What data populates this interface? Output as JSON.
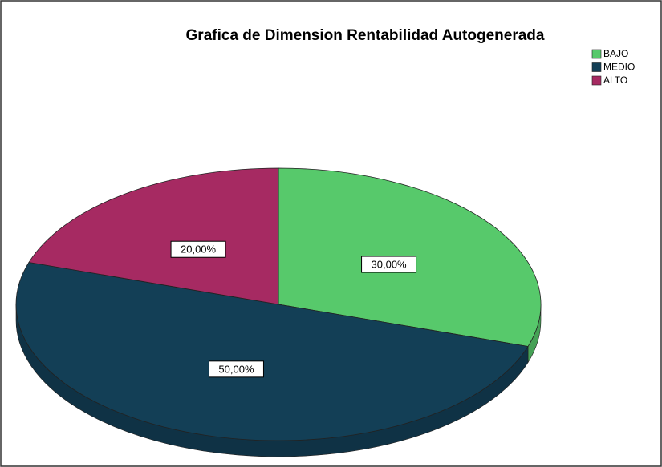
{
  "chart_data": {
    "type": "pie",
    "title": "Grafica de Dimension Rentabilidad Autogenerada",
    "categories": [
      "BAJO",
      "MEDIO",
      "ALTO"
    ],
    "values": [
      30,
      50,
      20
    ],
    "value_labels": [
      "30,00%",
      "50,00%",
      "20,00%"
    ],
    "colors": [
      "#57c96b",
      "#133f56",
      "#a62a62"
    ],
    "legend": "top-right"
  }
}
